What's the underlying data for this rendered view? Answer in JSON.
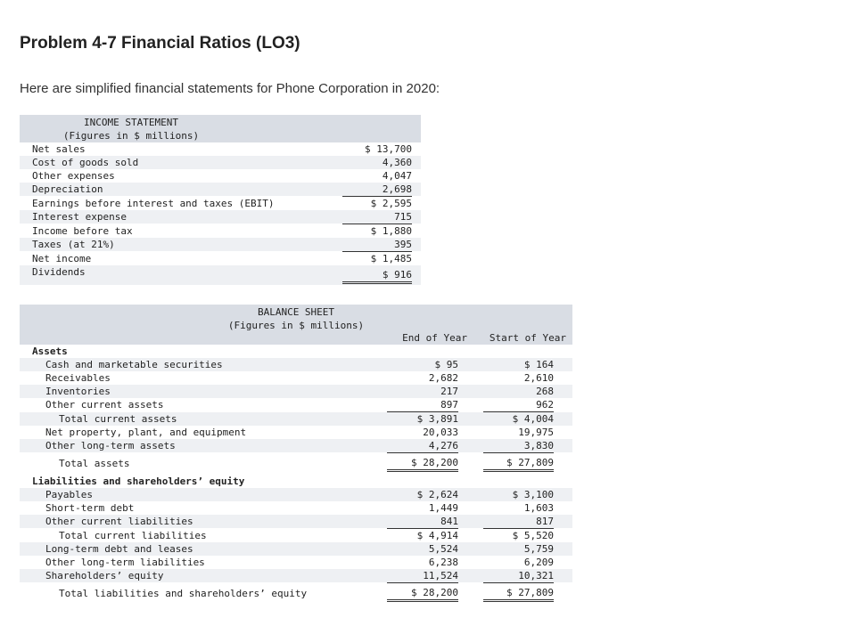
{
  "page": {
    "title": "Problem 4-7 Financial Ratios (LO3)",
    "intro": "Here are simplified financial statements for Phone Corporation in 2020:"
  },
  "income": {
    "heading": "INCOME STATEMENT",
    "subheading": "(Figures in $ millions)",
    "rows": [
      {
        "label": "Net sales",
        "value": "$ 13,700"
      },
      {
        "label": "Cost of goods sold",
        "value": "4,360"
      },
      {
        "label": "Other expenses",
        "value": "4,047"
      },
      {
        "label": "Depreciation",
        "value": "2,698"
      },
      {
        "label": "Earnings before interest and taxes (EBIT)",
        "value": "$ 2,595"
      },
      {
        "label": "Interest expense",
        "value": "715"
      },
      {
        "label": "Income before tax",
        "value": "$ 1,880"
      },
      {
        "label": "Taxes (at 21%)",
        "value": "395"
      },
      {
        "label": "Net income",
        "value": "$ 1,485"
      },
      {
        "label": "Dividends",
        "value": "$ 916"
      }
    ]
  },
  "balance": {
    "heading": "BALANCE SHEET",
    "subheading": "(Figures in $ millions)",
    "col_end": "End of Year",
    "col_start": "Start of Year",
    "rows": [
      {
        "label": "Assets",
        "end": "",
        "start": ""
      },
      {
        "label": "Cash and marketable securities",
        "end": "$ 95",
        "start": "$ 164"
      },
      {
        "label": "Receivables",
        "end": "2,682",
        "start": "2,610"
      },
      {
        "label": "Inventories",
        "end": "217",
        "start": "268"
      },
      {
        "label": "Other current assets",
        "end": "897",
        "start": "962"
      },
      {
        "label": "Total current assets",
        "end": "$ 3,891",
        "start": "$ 4,004"
      },
      {
        "label": "Net property, plant, and equipment",
        "end": "20,033",
        "start": "19,975"
      },
      {
        "label": "Other long-term assets",
        "end": "4,276",
        "start": "3,830"
      },
      {
        "label": "Total assets",
        "end": "$ 28,200",
        "start": "$ 27,809"
      },
      {
        "label": "Liabilities and shareholders’ equity",
        "end": "",
        "start": ""
      },
      {
        "label": "Payables",
        "end": "$ 2,624",
        "start": "$ 3,100"
      },
      {
        "label": "Short-term debt",
        "end": "1,449",
        "start": "1,603"
      },
      {
        "label": "Other current liabilities",
        "end": "841",
        "start": "817"
      },
      {
        "label": "Total current liabilities",
        "end": "$ 4,914",
        "start": "$ 5,520"
      },
      {
        "label": "Long-term debt and leases",
        "end": "5,524",
        "start": "5,759"
      },
      {
        "label": "Other long-term liabilities",
        "end": "6,238",
        "start": "6,209"
      },
      {
        "label": "Shareholders’ equity",
        "end": "11,524",
        "start": "10,321"
      },
      {
        "label": "Total liabilities and shareholders’ equity",
        "end": "$ 28,200",
        "start": "$ 27,809"
      }
    ]
  }
}
